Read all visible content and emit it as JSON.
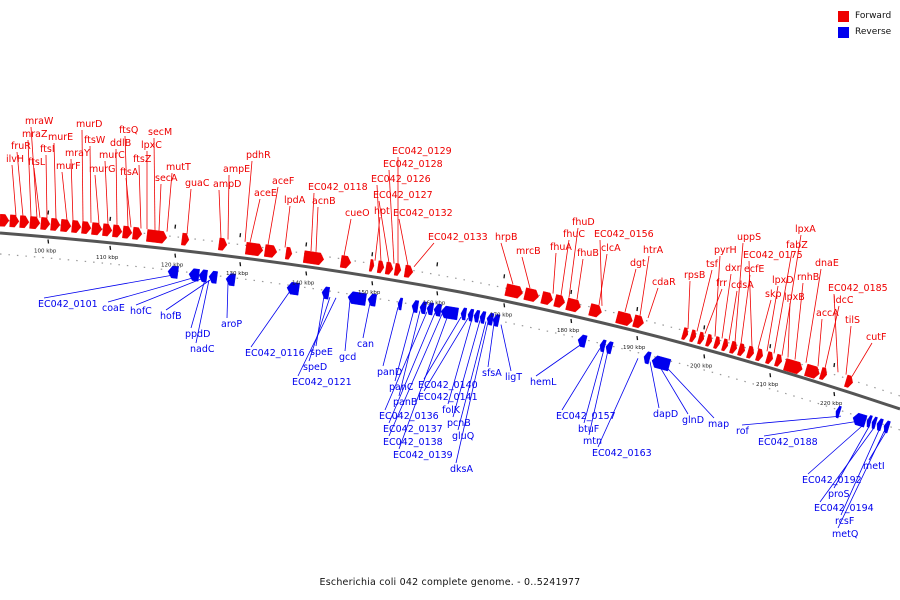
{
  "legend": [
    {
      "label": "Forward",
      "color": "#ee0000"
    },
    {
      "label": "Reverse",
      "color": "#0000ee"
    }
  ],
  "caption": "Escherichia coli 042 complete genome. - 0..5241977",
  "colors": {
    "forward": "#ee0000",
    "reverse": "#0000ee",
    "backbone": "#555555"
  },
  "ticks": [
    "100 kbp",
    "110 kbp",
    "120 kbp",
    "130 kbp",
    "140 kbp",
    "150 kbp",
    "160 kbp",
    "170 kbp",
    "180 kbp",
    "190 kbp",
    "200 kbp",
    "210 kbp",
    "220 kbp"
  ],
  "forward_labels": [
    "ilvH",
    "fruR",
    "mraZ",
    "mraW",
    "ftsL",
    "ftsI",
    "murE",
    "murF",
    "mraY",
    "murD",
    "ftsW",
    "murG",
    "murC",
    "ddlB",
    "ftsQ",
    "ftsA",
    "ftsZ",
    "lpxC",
    "secM",
    "secA",
    "mutT",
    "guaC",
    "ampD",
    "ampE",
    "aceE",
    "pdhR",
    "aceF",
    "lpdA",
    "acnB",
    "EC042_0118",
    "cueO",
    "hpt",
    "EC042_0126",
    "EC042_0127",
    "EC042_0128",
    "EC042_0129",
    "EC042_0132",
    "EC042_0133",
    "hrpB",
    "mrcB",
    "fhuA",
    "fhuC",
    "fhuD",
    "fhuB",
    "clcA",
    "EC042_0156",
    "dgt",
    "htrA",
    "cdaR",
    "rpsB",
    "tsf",
    "frr",
    "pyrH",
    "dxr",
    "cdsA",
    "uppS",
    "ecfE",
    "EC042_0175",
    "skp",
    "lpxD",
    "fabZ",
    "lpxA",
    "lpxB",
    "rnhB",
    "dnaE",
    "accA",
    "ldcC",
    "EC042_0185",
    "tilS",
    "cutF"
  ],
  "reverse_labels": [
    "EC042_0101",
    "coaE",
    "hofC",
    "hofB",
    "ppdD",
    "nadC",
    "aroP",
    "EC042_0116",
    "speE",
    "speD",
    "EC042_0121",
    "gcd",
    "can",
    "panD",
    "panC",
    "panB",
    "EC042_0136",
    "EC042_0137",
    "EC042_0138",
    "EC042_0139",
    "EC042_0140",
    "EC042_0141",
    "folK",
    "pcnB",
    "gluQ",
    "dksA",
    "sfsA",
    "ligT",
    "hemL",
    "EC042_0157",
    "btuF",
    "mtn",
    "EC042_0163",
    "dapD",
    "glnD",
    "map",
    "rof",
    "EC042_0188",
    "EC042_0192",
    "proS",
    "EC042_0194",
    "rcsF",
    "metQ",
    "metI"
  ]
}
